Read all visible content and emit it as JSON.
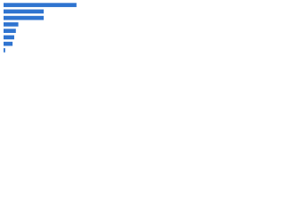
{
  "chart_data": {
    "type": "bar",
    "orientation": "horizontal",
    "categories": [
      null,
      null,
      null,
      null,
      null,
      null,
      null,
      null
    ],
    "values": [
      89,
      49,
      49,
      18,
      15,
      13,
      11,
      2
    ],
    "color": "#2f74d0",
    "xlim": [
      0,
      100
    ]
  }
}
